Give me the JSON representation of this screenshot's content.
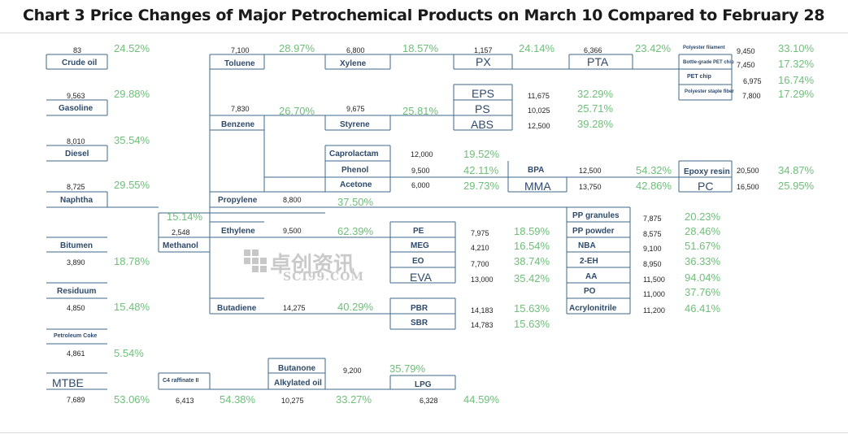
{
  "title": "Chart 3 Price Changes of Major Petrochemical Products on March 10 Compared to February 28",
  "colors": {
    "line": "#3d6a8a",
    "name": "#2e4a6b",
    "percent": "#6fbf7a"
  },
  "products": {
    "crude_oil": {
      "name": "Crude oil",
      "price": "83",
      "change": "24.52%"
    },
    "gasoline": {
      "name": "Gasoline",
      "price": "9,563",
      "change": "29.88%"
    },
    "diesel": {
      "name": "Diesel",
      "price": "8,010",
      "change": "35.54%"
    },
    "naphtha": {
      "name": "Naphtha",
      "price": "8,725",
      "change": "29.55%"
    },
    "bitumen": {
      "name": "Bitumen",
      "price": "3,890",
      "change": "18.78%"
    },
    "residuum": {
      "name": "Residuum",
      "price": "4,850",
      "change": "15.48%"
    },
    "petroleum_coke": {
      "name": "Petroleum Coke",
      "price": "4,861",
      "change": "5.54%"
    },
    "mtbe": {
      "name": "MTBE",
      "price": "7,689",
      "change": "53.06%"
    },
    "methanol": {
      "name": "Methanol",
      "price": "2,548",
      "change": "15.14%"
    },
    "c4_raffinate": {
      "name": "C4 raffinate II",
      "price": "6,413",
      "change": "54.38%"
    },
    "toluene": {
      "name": "Toluene",
      "price": "7,100",
      "change": "28.97%"
    },
    "benzene": {
      "name": "Benzene",
      "price": "7,830",
      "change": "26.70%"
    },
    "propylene": {
      "name": "Propylene",
      "price": "8,800",
      "change": "37.50%"
    },
    "ethylene": {
      "name": "Ethylene",
      "price": "9,500",
      "change": "62.39%"
    },
    "butadiene": {
      "name": "Butadiene",
      "price": "14,275",
      "change": "40.29%"
    },
    "xylene": {
      "name": "Xylene",
      "price": "6,800",
      "change": "18.57%"
    },
    "styrene": {
      "name": "Styrene",
      "price": "9,675",
      "change": "25.81%"
    },
    "caprolactam": {
      "name": "Caprolactam",
      "price": "12,000",
      "change": "19.52%"
    },
    "phenol": {
      "name": "Phenol",
      "price": "9,500",
      "change": "42.11%"
    },
    "acetone": {
      "name": "Acetone",
      "price": "6,000",
      "change": "29.73%"
    },
    "butanone": {
      "name": "Butanone",
      "price": "9,200",
      "change": "35.79%"
    },
    "alkylated_oil": {
      "name": "Alkylated oil",
      "price": "10,275",
      "change": "33.27%"
    },
    "px": {
      "name": "PX",
      "price": "1,157",
      "change": "24.14%"
    },
    "pta": {
      "name": "PTA",
      "price": "6,366",
      "change": "23.42%"
    },
    "eps": {
      "name": "EPS",
      "price": "11,675",
      "change": "32.29%"
    },
    "ps": {
      "name": "PS",
      "price": "10,025",
      "change": "25.71%"
    },
    "abs": {
      "name": "ABS",
      "price": "12,500",
      "change": "39.28%"
    },
    "pe": {
      "name": "PE",
      "price": "7,975",
      "change": "18.59%"
    },
    "meg": {
      "name": "MEG",
      "price": "4,210",
      "change": "16.54%"
    },
    "eo": {
      "name": "EO",
      "price": "7,700",
      "change": "38.74%"
    },
    "eva": {
      "name": "EVA",
      "price": "13,000",
      "change": "35.42%"
    },
    "pbr": {
      "name": "PBR",
      "price": "14,183",
      "change": "15.63%"
    },
    "sbr": {
      "name": "SBR",
      "price": "14,783",
      "change": "15.63%"
    },
    "lpg": {
      "name": "LPG",
      "price": "6,328",
      "change": "44.59%"
    },
    "bpa": {
      "name": "BPA",
      "price": "12,500",
      "change": "54.32%"
    },
    "mma": {
      "name": "MMA",
      "price": "13,750",
      "change": "42.86%"
    },
    "polyester_filament": {
      "name": "Polyester filament",
      "price": "9,450",
      "change": "33.10%"
    },
    "bottle_pet_chip": {
      "name": "Bottle-grade PET chip",
      "price": "7,450",
      "change": "17.32%"
    },
    "pet_chip": {
      "name": "PET chip",
      "price": "6,975",
      "change": "16.74%"
    },
    "polyester_staple": {
      "name": "Polyester staple fiber",
      "price": "7,800",
      "change": "17.29%"
    },
    "epoxy_resin": {
      "name": "Epoxy resin",
      "price": "20,500",
      "change": "34.87%"
    },
    "pc": {
      "name": "PC",
      "price": "16,500",
      "change": "25.95%"
    },
    "pp_granules": {
      "name": "PP granules",
      "price": "7,875",
      "change": "20.23%"
    },
    "pp_powder": {
      "name": "PP powder",
      "price": "8,575",
      "change": "28.46%"
    },
    "nba": {
      "name": "NBA",
      "price": "9,100",
      "change": "51.67%"
    },
    "two_eh": {
      "name": "2-EH",
      "price": "8,950",
      "change": "36.33%"
    },
    "aa": {
      "name": "AA",
      "price": "11,500",
      "change": "94.04%"
    },
    "po": {
      "name": "PO",
      "price": "11,000",
      "change": "37.76%"
    },
    "acrylonitrile": {
      "name": "Acrylonitrile",
      "price": "11,200",
      "change": "46.41%"
    }
  },
  "watermark": {
    "chinese": "卓创资讯",
    "latin": "SCI99.COM"
  }
}
